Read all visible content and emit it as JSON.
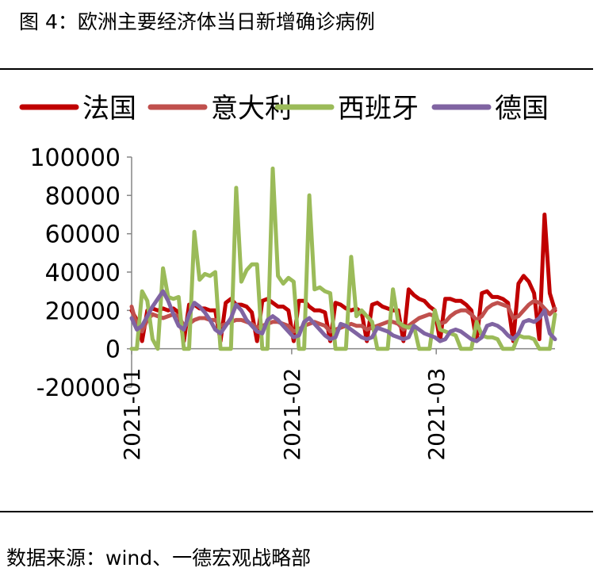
{
  "header": {
    "title": "图 4：欧洲主要经济体当日新增确诊病例"
  },
  "footer": {
    "source": "数据来源：wind、一德宏观战略部"
  },
  "colors": {
    "france": "#c00000",
    "italy": "#c0504d",
    "spain": "#9bbb59",
    "germany": "#8064a2"
  },
  "chart_data": {
    "type": "line",
    "title": "",
    "xlabel": "",
    "ylabel": "",
    "ylim": [
      -20000,
      100000
    ],
    "yticks": [
      "100000",
      "80000",
      "60000",
      "40000",
      "20000",
      "0",
      "-20000"
    ],
    "yticks_values": [
      100000,
      80000,
      60000,
      40000,
      20000,
      0,
      -20000
    ],
    "xticks": [
      "2021-01",
      "2021-02",
      "2021-03"
    ],
    "xticks_values": [
      "2021-01-01",
      "2021-02-01",
      "2021-03-01"
    ],
    "x_start": "2021-01-01",
    "x_end": "2021-03-24",
    "grid": false,
    "legend_position": "top",
    "series": [
      {
        "name": "法国",
        "color": "#c00000",
        "values": [
          20000,
          15000,
          4000,
          20000,
          21000,
          20000,
          21000,
          20000,
          21000,
          19000,
          4000,
          23000,
          23000,
          21000,
          21000,
          20000,
          20000,
          4000,
          24000,
          26000,
          23000,
          23000,
          22000,
          19000,
          4000,
          25000,
          26000,
          24000,
          22000,
          22000,
          20000,
          4000,
          25000,
          25000,
          22000,
          20000,
          20000,
          19000,
          4000,
          24000,
          23000,
          21000,
          20000,
          21000,
          19000,
          4000,
          23000,
          24000,
          22000,
          21000,
          20000,
          20000,
          4000,
          31000,
          28000,
          26000,
          25000,
          22000,
          20000,
          4000,
          26000,
          26000,
          25000,
          25000,
          23000,
          20000,
          4000,
          29000,
          30000,
          27000,
          27000,
          26000,
          24000,
          4000,
          34000,
          38000,
          35000,
          29000,
          5000,
          70000,
          29000,
          20000
        ]
      },
      {
        "name": "意大利",
        "color": "#c0504d",
        "values": [
          22000,
          12000,
          9000,
          15000,
          18000,
          17000,
          16000,
          17000,
          18000,
          17000,
          12000,
          13000,
          15000,
          16000,
          16000,
          15000,
          15000,
          12000,
          13000,
          14000,
          15000,
          15000,
          14000,
          13000,
          11000,
          12000,
          13000,
          14000,
          14000,
          13000,
          12000,
          9000,
          10000,
          12000,
          13000,
          14000,
          13000,
          12000,
          9000,
          10000,
          11000,
          12000,
          13000,
          12000,
          12000,
          10000,
          11000,
          12000,
          13000,
          14000,
          14000,
          13000,
          10000,
          12000,
          14000,
          16000,
          17000,
          18000,
          17000,
          13000,
          14000,
          17000,
          19000,
          20000,
          20000,
          18000,
          15000,
          17000,
          21000,
          23000,
          24000,
          23000,
          22000,
          16000,
          17000,
          20000,
          23000,
          25000,
          24000,
          21000,
          18000,
          21000
        ]
      },
      {
        "name": "西班牙",
        "color": "#9bbb59",
        "values": [
          0,
          0,
          30000,
          25000,
          5000,
          0,
          42000,
          27000,
          26000,
          27000,
          0,
          0,
          61000,
          36000,
          39000,
          38000,
          40000,
          0,
          0,
          0,
          84000,
          35000,
          41000,
          44000,
          44000,
          0,
          0,
          94000,
          38000,
          34000,
          37000,
          35000,
          0,
          0,
          80000,
          31000,
          32000,
          30000,
          29000,
          0,
          0,
          0,
          48000,
          17000,
          20000,
          17000,
          14000,
          0,
          0,
          0,
          31000,
          14000,
          12000,
          11000,
          12000,
          0,
          0,
          0,
          20000,
          10000,
          9000,
          8000,
          7000,
          0,
          0,
          0,
          14000,
          7000,
          6000,
          6000,
          5000,
          0,
          0,
          0,
          7000,
          6000,
          6000,
          5000,
          0,
          0,
          0,
          18000
        ]
      },
      {
        "name": "德国",
        "color": "#8064a2",
        "values": [
          16000,
          10000,
          12000,
          17000,
          22000,
          26000,
          30000,
          25000,
          18000,
          12000,
          10000,
          18000,
          24000,
          22000,
          19000,
          15000,
          10000,
          8000,
          12000,
          16000,
          23000,
          20000,
          15000,
          12000,
          9000,
          8000,
          15000,
          17000,
          15000,
          12000,
          9000,
          6000,
          7000,
          14000,
          16000,
          13000,
          10000,
          7000,
          5000,
          6000,
          13000,
          12000,
          10000,
          8000,
          6000,
          5000,
          6000,
          11000,
          10000,
          9000,
          7000,
          6000,
          5000,
          6000,
          12000,
          10000,
          8000,
          7000,
          6000,
          4000,
          5000,
          9000,
          10000,
          9000,
          7000,
          5000,
          4000,
          6000,
          12000,
          13000,
          12000,
          10000,
          7000,
          5000,
          8000,
          14000,
          15000,
          14000,
          16000,
          20000,
          8000,
          5000
        ]
      }
    ]
  }
}
